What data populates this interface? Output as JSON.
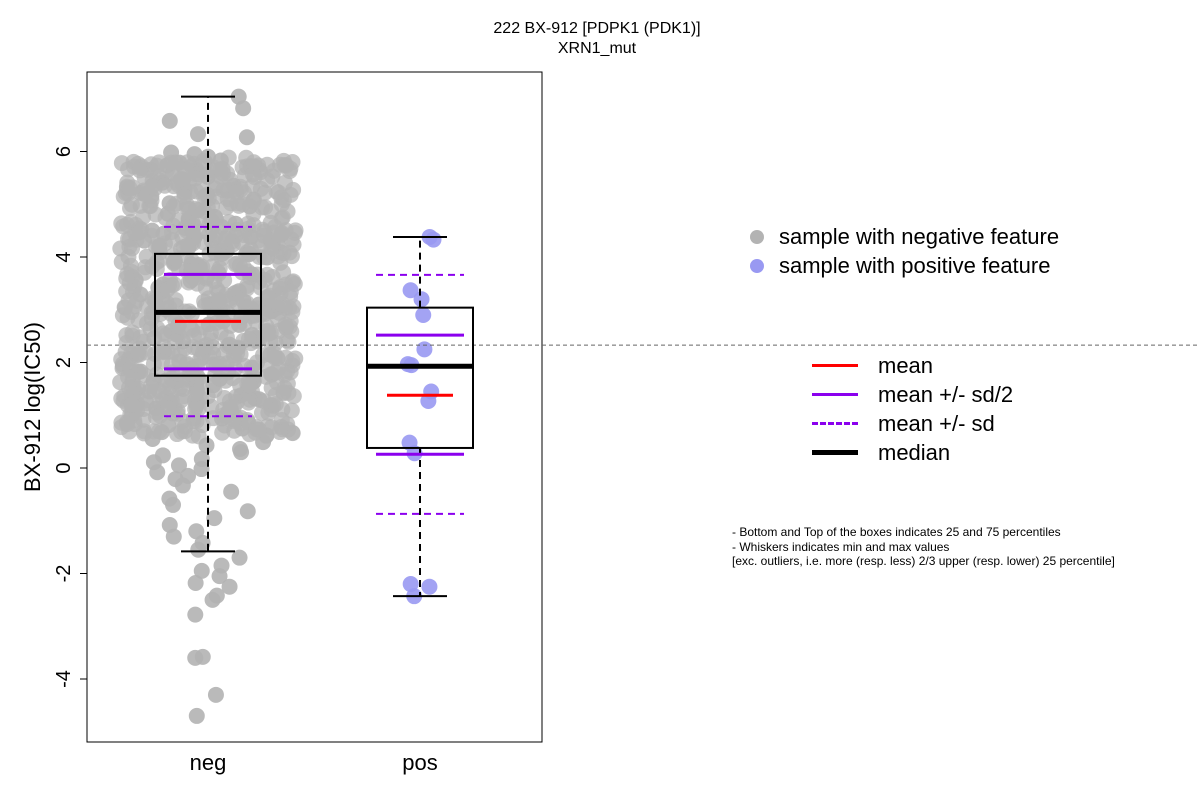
{
  "title": "222 BX-912 [PDPK1 (PDK1)]",
  "subtitle": "XRN1_mut",
  "chart_data": {
    "type": "box",
    "ylabel": "BX-912 log(IC50)",
    "xlabel": "",
    "ylim": [
      -5.2,
      7.5
    ],
    "yticks": [
      "-4",
      "-2",
      "0",
      "2",
      "4",
      "6"
    ],
    "reference_line": 2.33,
    "groups": [
      {
        "name": "neg",
        "color": "#b3b3b3",
        "box": {
          "min": -1.58,
          "q1": 1.75,
          "median": 2.95,
          "q3": 4.06,
          "max": 7.04
        },
        "mean": 2.78,
        "mean_plus_half_sd": 3.67,
        "mean_minus_half_sd": 1.88,
        "mean_plus_sd": 4.57,
        "mean_minus_sd": 0.98,
        "points_shown": [
          7.04,
          6.82,
          6.58,
          6.33,
          6.27,
          5.98,
          5.95,
          5.9,
          5.83,
          5.79,
          5.74,
          5.71,
          5.65,
          5.58,
          5.52,
          5.47,
          5.41,
          5.35,
          5.28,
          5.22,
          5.15,
          5.09,
          5.02,
          4.96,
          4.89,
          4.82,
          4.76,
          4.7,
          4.63,
          4.57,
          4.5,
          4.44,
          4.37,
          4.31,
          4.25,
          4.18,
          4.12,
          4.06,
          3.99,
          3.93,
          3.86,
          3.8,
          3.74,
          3.67,
          3.61,
          3.55,
          3.48,
          3.42,
          3.35,
          3.29,
          3.23,
          3.16,
          3.1,
          3.04,
          2.97,
          2.91,
          2.85,
          2.78,
          2.72,
          2.66,
          2.59,
          2.53,
          2.46,
          2.4,
          2.34,
          2.27,
          2.21,
          2.15,
          2.08,
          2.02,
          1.96,
          1.89,
          1.83,
          1.77,
          1.7,
          1.64,
          1.57,
          1.51,
          1.45,
          1.38,
          1.32,
          1.26,
          1.19,
          1.13,
          1.06,
          1.0,
          0.94,
          0.87,
          0.81,
          0.75,
          0.68,
          0.62,
          0.55,
          0.49,
          0.43,
          0.36,
          0.3,
          0.24,
          0.17,
          0.11,
          0.05,
          -0.02,
          -0.08,
          -0.15,
          -0.21,
          -0.33,
          -0.45,
          -0.58,
          -0.7,
          -0.82,
          -0.95,
          -1.08,
          -1.2,
          -1.3,
          -1.42,
          -1.55,
          -1.7,
          -1.85,
          -1.95,
          -2.05,
          -2.18,
          -2.25,
          -2.42,
          -2.5,
          -2.78,
          -3.58,
          -3.6,
          -4.3,
          -4.7
        ]
      },
      {
        "name": "pos",
        "color": "#9999f2",
        "box": {
          "min": -2.43,
          "q1": 0.38,
          "median": 1.93,
          "q3": 3.04,
          "max": 4.38
        },
        "mean": 1.38,
        "mean_plus_half_sd": 2.52,
        "mean_minus_half_sd": 0.26,
        "mean_plus_sd": 3.66,
        "mean_minus_sd": -0.87,
        "points": [
          4.38,
          4.33,
          3.37,
          3.2,
          2.9,
          2.25,
          1.97,
          1.95,
          1.45,
          1.27,
          0.48,
          0.28,
          -2.2,
          -2.25,
          -2.43
        ]
      }
    ]
  },
  "legend_points": [
    {
      "label": "sample with negative feature",
      "color": "#b3b3b3"
    },
    {
      "label": "sample with positive feature",
      "color": "#9999f2"
    }
  ],
  "legend_lines": [
    {
      "label": "mean",
      "color": "#ff0000",
      "style": "solid"
    },
    {
      "label": "mean +/- sd/2",
      "color": "#8b00ee",
      "style": "solid"
    },
    {
      "label": "mean +/- sd",
      "color": "#8b00ee",
      "style": "dashed"
    },
    {
      "label": "median",
      "color": "#000000",
      "style": "bold"
    }
  ],
  "notes": [
    "- Bottom and Top of the boxes indicates 25 and 75 percentiles",
    "- Whiskers indicates min and max values",
    "[exc. outliers, i.e. more (resp. less) 2/3 upper (resp. lower) 25 percentile]"
  ]
}
